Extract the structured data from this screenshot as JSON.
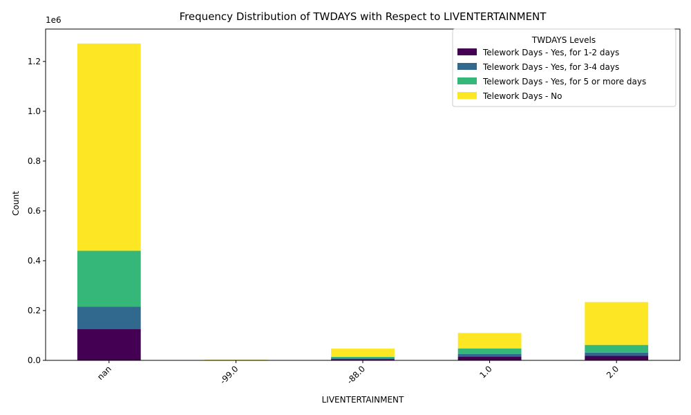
{
  "chart_data": {
    "type": "bar",
    "stacked": true,
    "title": "Frequency Distribution of TWDAYS with Respect to LIVENTERTAINMENT",
    "xlabel": "LIVENTERTAINMENT",
    "ylabel": "Count",
    "y_multiplier_label": "1e6",
    "categories": [
      "nan",
      "-99.0",
      "-88.0",
      "1.0",
      "2.0"
    ],
    "ylim": [
      0,
      1.33
    ],
    "yticks": [
      0.0,
      0.2,
      0.4,
      0.6,
      0.8,
      1.0,
      1.2
    ],
    "ytick_labels": [
      "0.0",
      "0.2",
      "0.4",
      "0.6",
      "0.8",
      "1.0",
      "1.2"
    ],
    "legend_title": "TWDAYS Levels",
    "legend_position": "top-right",
    "grid": false,
    "series": [
      {
        "name": "Telework Days - Yes, for 1-2 days",
        "color": "#440154",
        "values": [
          0.126,
          0.0005,
          0.005,
          0.015,
          0.018
        ]
      },
      {
        "name": "Telework Days - Yes, for 3-4 days",
        "color": "#31688e",
        "values": [
          0.09,
          0.0005,
          0.003,
          0.01,
          0.013
        ]
      },
      {
        "name": "Telework Days - Yes, for 5 or more days",
        "color": "#35b779",
        "values": [
          0.224,
          0.0005,
          0.006,
          0.023,
          0.031
        ]
      },
      {
        "name": "Telework Days - No",
        "color": "#fde725",
        "values": [
          0.832,
          0.001,
          0.033,
          0.062,
          0.172
        ]
      }
    ]
  }
}
